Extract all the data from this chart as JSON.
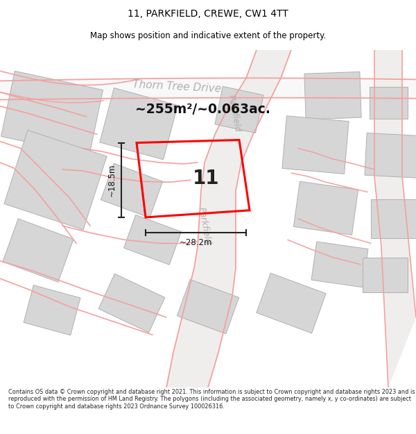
{
  "title": "11, PARKFIELD, CREWE, CW1 4TT",
  "subtitle": "Map shows position and indicative extent of the property.",
  "footer": "Contains OS data © Crown copyright and database right 2021. This information is subject to Crown copyright and database rights 2023 and is reproduced with the permission of HM Land Registry. The polygons (including the associated geometry, namely x, y co-ordinates) are subject to Crown copyright and database rights 2023 Ordnance Survey 100026316.",
  "map_bg": "#f2f0ee",
  "road_color": "#f4a0a0",
  "building_color": "#d6d6d6",
  "building_edge": "#b0b0b0",
  "property_color": "#ff0000",
  "dim_color": "#333333",
  "label_color": "#aaaaaa",
  "area_text": "~255m²/~0.063ac.",
  "dim_h": "~18.5m",
  "dim_w": "~28.2m",
  "property_label": "11",
  "street1": "Thorn Tree Drive",
  "street2": "Parkfield"
}
